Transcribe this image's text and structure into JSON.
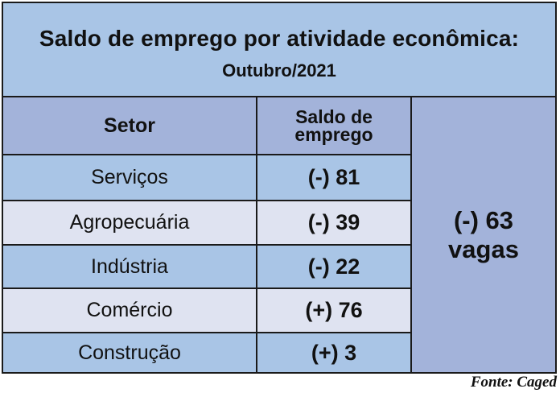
{
  "title": "Saldo de emprego por atividade econômica:",
  "subtitle": "Outubro/2021",
  "table": {
    "header_sector": "Setor",
    "header_balance_line1": "Saldo de",
    "header_balance_line2": "emprego",
    "rows": [
      {
        "sector": "Serviços",
        "balance": "(-) 81"
      },
      {
        "sector": "Agropecuária",
        "balance": "(-) 39"
      },
      {
        "sector": "Indústria",
        "balance": "(-) 22"
      },
      {
        "sector": "Comércio",
        "balance": "(+) 76"
      },
      {
        "sector": "Construção",
        "balance": "(+) 3"
      }
    ],
    "total_value": "(-) 63",
    "total_unit": "vagas"
  },
  "source": "Fonte: Caged",
  "colors": {
    "blue_band": "#a9c5e6",
    "header_purple": "#a3b3da",
    "light_band": "#dfe3f1",
    "border": "#1a1a1a"
  }
}
